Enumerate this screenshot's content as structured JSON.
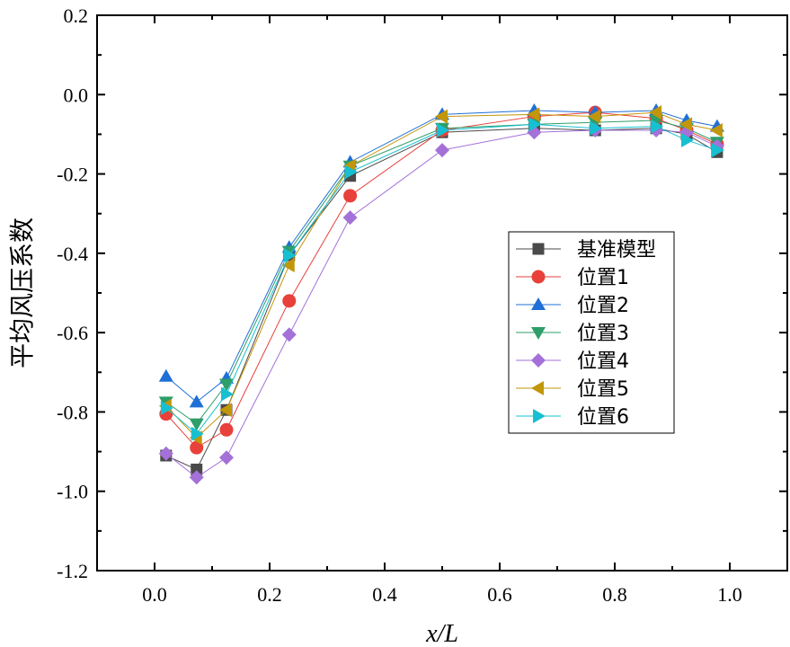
{
  "chart_data": {
    "type": "line",
    "title": "",
    "xlabel": "x/L",
    "ylabel": "平均风压系数",
    "xlim": [
      -0.1,
      1.1
    ],
    "ylim": [
      -1.2,
      0.2
    ],
    "xticks": [
      0.0,
      0.2,
      0.4,
      0.6,
      0.8,
      1.0
    ],
    "xtick_labels": [
      "0.0",
      "0.2",
      "0.4",
      "0.6",
      "0.8",
      "1.0"
    ],
    "yticks": [
      0.2,
      0.0,
      -0.2,
      -0.4,
      -0.6,
      -0.8,
      -1.0,
      -1.2
    ],
    "ytick_labels": [
      "0.2",
      "0.0",
      "-0.2",
      "-0.4",
      "-0.6",
      "-0.8",
      "-1.0",
      "-1.2"
    ],
    "grid": false,
    "legend_position": "center-right",
    "x": [
      0.02,
      0.073,
      0.125,
      0.234,
      0.34,
      0.5,
      0.66,
      0.766,
      0.872,
      0.925,
      0.978
    ],
    "series": [
      {
        "name": "基准模型",
        "marker": "square",
        "color": "#4a4a4a",
        "values": [
          -0.91,
          -0.945,
          -0.795,
          -0.405,
          -0.205,
          -0.095,
          -0.085,
          -0.09,
          -0.085,
          -0.1,
          -0.145
        ]
      },
      {
        "name": "位置1",
        "marker": "circle",
        "color": "#e8403a",
        "values": [
          -0.805,
          -0.89,
          -0.845,
          -0.52,
          -0.255,
          -0.09,
          -0.055,
          -0.045,
          -0.06,
          -0.09,
          -0.125
        ]
      },
      {
        "name": "位置2",
        "marker": "triangle-up",
        "color": "#1f6fd6",
        "values": [
          -0.71,
          -0.775,
          -0.715,
          -0.385,
          -0.17,
          -0.05,
          -0.04,
          -0.045,
          -0.04,
          -0.065,
          -0.08
        ]
      },
      {
        "name": "位置3",
        "marker": "triangle-down",
        "color": "#2e9e6a",
        "values": [
          -0.775,
          -0.83,
          -0.73,
          -0.395,
          -0.18,
          -0.085,
          -0.075,
          -0.07,
          -0.065,
          -0.085,
          -0.12
        ]
      },
      {
        "name": "位置4",
        "marker": "diamond",
        "color": "#a371d8",
        "values": [
          -0.905,
          -0.965,
          -0.915,
          -0.605,
          -0.31,
          -0.14,
          -0.095,
          -0.09,
          -0.09,
          -0.095,
          -0.13
        ]
      },
      {
        "name": "位置5",
        "marker": "triangle-left",
        "color": "#c2960a",
        "values": [
          -0.785,
          -0.865,
          -0.795,
          -0.43,
          -0.18,
          -0.055,
          -0.05,
          -0.055,
          -0.045,
          -0.075,
          -0.09
        ]
      },
      {
        "name": "位置6",
        "marker": "triangle-right",
        "color": "#17c0d0",
        "values": [
          -0.79,
          -0.855,
          -0.755,
          -0.405,
          -0.195,
          -0.09,
          -0.075,
          -0.085,
          -0.08,
          -0.115,
          -0.14
        ]
      }
    ]
  }
}
